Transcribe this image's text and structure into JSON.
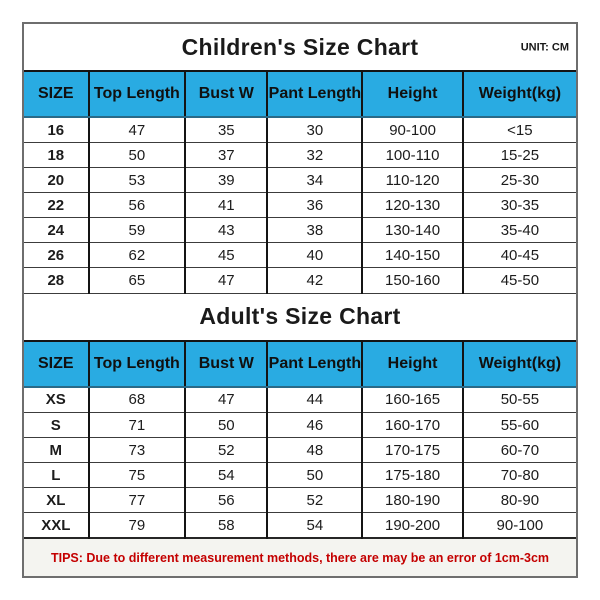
{
  "unit_label": "UNIT: CM",
  "tips_text": "TIPS: Due to different measurement methods, there are may be an error of 1cm-3cm",
  "chart_data": [
    {
      "type": "table",
      "title": "Children's Size Chart",
      "unit": "CM",
      "columns": [
        "SIZE",
        "Top Length",
        "Bust W",
        "Pant Length",
        "Height",
        "Weight(kg)"
      ],
      "rows": [
        [
          "16",
          "47",
          "35",
          "30",
          "90-100",
          "<15"
        ],
        [
          "18",
          "50",
          "37",
          "32",
          "100-110",
          "15-25"
        ],
        [
          "20",
          "53",
          "39",
          "34",
          "110-120",
          "25-30"
        ],
        [
          "22",
          "56",
          "41",
          "36",
          "120-130",
          "30-35"
        ],
        [
          "24",
          "59",
          "43",
          "38",
          "130-140",
          "35-40"
        ],
        [
          "26",
          "62",
          "45",
          "40",
          "140-150",
          "40-45"
        ],
        [
          "28",
          "65",
          "47",
          "42",
          "150-160",
          "45-50"
        ]
      ]
    },
    {
      "type": "table",
      "title": "Adult's Size Chart",
      "unit": "CM",
      "columns": [
        "SIZE",
        "Top Length",
        "Bust W",
        "Pant Length",
        "Height",
        "Weight(kg)"
      ],
      "rows": [
        [
          "XS",
          "68",
          "47",
          "44",
          "160-165",
          "50-55"
        ],
        [
          "S",
          "71",
          "50",
          "46",
          "160-170",
          "55-60"
        ],
        [
          "M",
          "73",
          "52",
          "48",
          "170-175",
          "60-70"
        ],
        [
          "L",
          "75",
          "54",
          "50",
          "175-180",
          "70-80"
        ],
        [
          "XL",
          "77",
          "56",
          "52",
          "180-190",
          "80-90"
        ],
        [
          "XXL",
          "79",
          "58",
          "54",
          "190-200",
          "90-100"
        ]
      ]
    }
  ],
  "colors": {
    "header_bg": "#29abe2",
    "header_underline": "#2a6a88",
    "tips_text": "#c40000",
    "tips_bg": "#f4f4f0",
    "outer_border": "#6e6e6e",
    "grid_line": "#141414"
  },
  "layout_hints": {
    "column_width_percent": [
      11.7,
      17.5,
      14.9,
      17.2,
      18.2,
      20.5
    ]
  }
}
